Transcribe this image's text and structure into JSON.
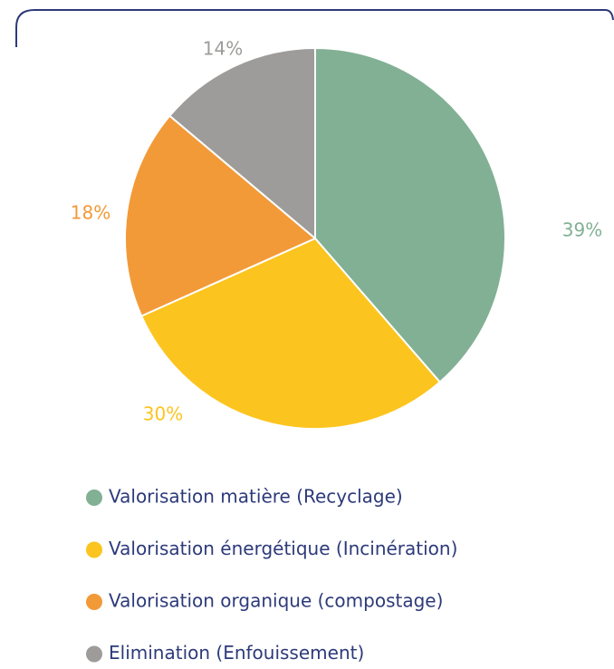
{
  "chart_data": {
    "type": "pie",
    "categories": [
      "Valorisation matière (Recyclage)",
      "Valorisation énergétique (Incinération)",
      "Valorisation organique (compostage)",
      "Elimination (Enfouissement)"
    ],
    "values": [
      39,
      30,
      18,
      14
    ],
    "value_labels": [
      "39%",
      "30%",
      "18%",
      "14%"
    ],
    "colors": [
      "#82b094",
      "#fcc41e",
      "#f29a38",
      "#9d9c9a"
    ]
  }
}
